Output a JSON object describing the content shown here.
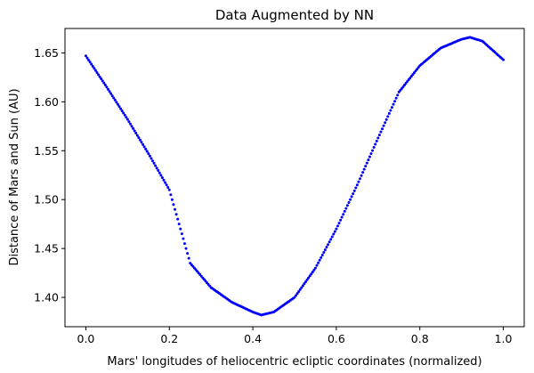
{
  "chart_data": {
    "type": "scatter",
    "title": "Data Augmented by NN",
    "xlabel": "Mars' longitudes of heliocentric ecliptic coordinates (normalized)",
    "ylabel": "Distance of Mars and Sun (AU)",
    "xlim": [
      -0.05,
      1.05
    ],
    "ylim": [
      1.37,
      1.675
    ],
    "x_ticks": [
      0.0,
      0.2,
      0.4,
      0.6,
      0.8,
      1.0
    ],
    "x_tick_labels": [
      "0.0",
      "0.2",
      "0.4",
      "0.6",
      "0.8",
      "1.0"
    ],
    "y_ticks": [
      1.4,
      1.45,
      1.5,
      1.55,
      1.6,
      1.65
    ],
    "y_tick_labels": [
      "1.40",
      "1.45",
      "1.50",
      "1.55",
      "1.60",
      "1.65"
    ],
    "grid": false,
    "color": "#0000ff",
    "series": [
      {
        "x": [
          0.0,
          0.05,
          0.1,
          0.15,
          0.2,
          0.25,
          0.3,
          0.35,
          0.4,
          0.42,
          0.45,
          0.5,
          0.55,
          0.6,
          0.65,
          0.7,
          0.75,
          0.8,
          0.85,
          0.9,
          0.92,
          0.95,
          1.0
        ],
        "y": [
          1.647,
          1.615,
          1.582,
          1.547,
          1.51,
          1.435,
          1.41,
          1.395,
          1.385,
          1.382,
          1.385,
          1.4,
          1.43,
          1.47,
          1.515,
          1.563,
          1.61,
          1.637,
          1.655,
          1.664,
          1.666,
          1.662,
          1.643
        ]
      }
    ]
  }
}
